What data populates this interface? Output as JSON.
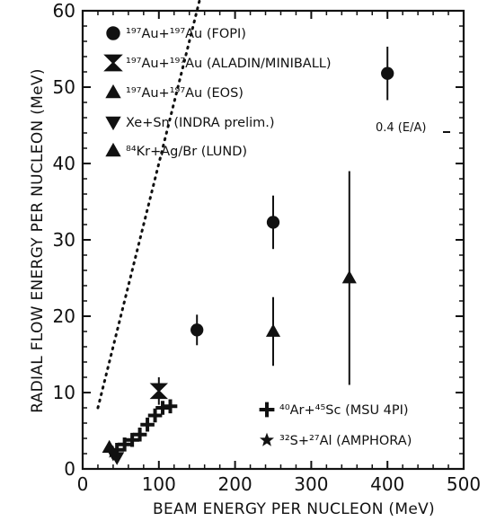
{
  "chart_data": {
    "type": "scatter",
    "title": "",
    "xlabel": "BEAM ENERGY PER NUCLEON (MeV)",
    "ylabel": "RADIAL FLOW ENERGY PER NUCLEON (MeV)",
    "xlim": [
      0,
      500
    ],
    "ylim": [
      0,
      60
    ],
    "x_ticks": [
      "0",
      "100",
      "200",
      "300",
      "400",
      "500"
    ],
    "y_ticks": [
      "0",
      "10",
      "20",
      "30",
      "40",
      "50",
      "60"
    ],
    "grid": false,
    "legend_placement": "top-left and bottom-right",
    "series": [
      {
        "name": "¹⁹⁷Au+¹⁹⁷Au (FOPI)",
        "marker": "circle",
        "points": [
          {
            "x": 150,
            "y": 18.2,
            "err": 2.0
          },
          {
            "x": 250,
            "y": 32.3,
            "err": 3.5
          },
          {
            "x": 400,
            "y": 51.8,
            "err": 3.5
          }
        ]
      },
      {
        "name": "¹⁹⁷Au+¹⁹⁷Au (ALADIN/MINIBALL)",
        "marker": "hourglass",
        "points": [
          {
            "x": 100,
            "y": 10.2,
            "err": 1.8
          }
        ]
      },
      {
        "name": "¹⁹⁷Au+¹⁹⁷Au (EOS)",
        "marker": "triangle-up",
        "points": [
          {
            "x": 250,
            "y": 18.0,
            "err": 4.5
          },
          {
            "x": 350,
            "y": 25.0,
            "err": 14.0
          }
        ]
      },
      {
        "name": "Xe+Sn (INDRA prelim.)",
        "marker": "triangle-down",
        "points": [
          {
            "x": 40,
            "y": 2.0,
            "err": 0.6
          },
          {
            "x": 45,
            "y": 1.5,
            "err": 0.5
          }
        ]
      },
      {
        "name": "⁸⁴Kr+Ag/Br (LUND)",
        "marker": "triangle-up",
        "points": [
          {
            "x": 35,
            "y": 2.8,
            "err": 0.5
          }
        ]
      },
      {
        "name": "⁴⁰Ar+⁴⁵Sc (MSU 4PI)",
        "marker": "plus",
        "points": [
          {
            "x": 45,
            "y": 2.5
          },
          {
            "x": 55,
            "y": 3.2
          },
          {
            "x": 65,
            "y": 3.8
          },
          {
            "x": 75,
            "y": 4.5
          },
          {
            "x": 85,
            "y": 5.8
          },
          {
            "x": 95,
            "y": 7.0
          },
          {
            "x": 105,
            "y": 8.0
          },
          {
            "x": 115,
            "y": 8.2
          }
        ]
      },
      {
        "name": "³²S+²⁷Al (AMPHORA)",
        "marker": "star",
        "points": [
          {
            "x": 40,
            "y": 2.2
          }
        ]
      }
    ],
    "reference_line": {
      "label": "0.4 (E/A)",
      "slope": 0.4,
      "x_range": [
        20,
        425
      ]
    }
  }
}
